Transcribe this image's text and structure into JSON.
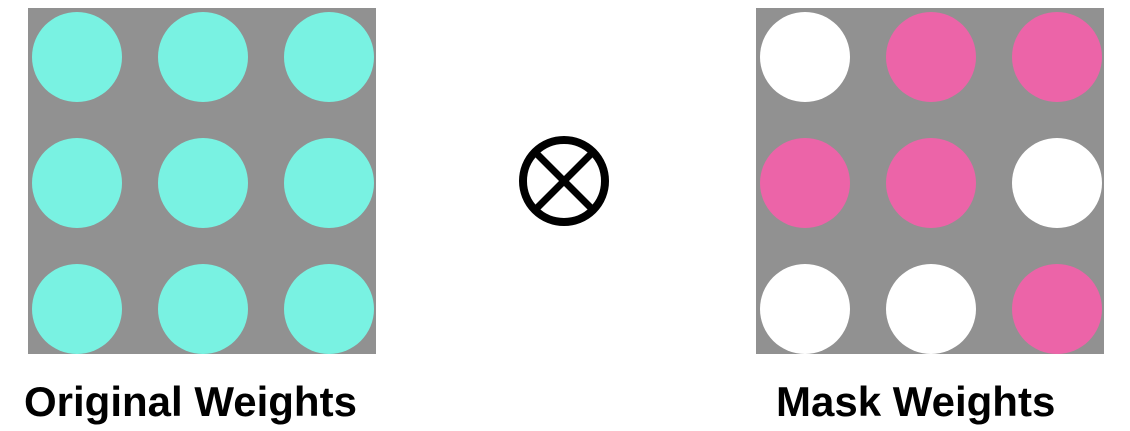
{
  "left": {
    "caption": "Original Weights",
    "grid": [
      [
        "on",
        "on",
        "on"
      ],
      [
        "on",
        "on",
        "on"
      ],
      [
        "on",
        "on",
        "on"
      ]
    ]
  },
  "operator": {
    "icon": "circled-times-icon"
  },
  "right": {
    "caption": "Mask Weights",
    "grid": [
      [
        "off",
        "on",
        "on"
      ],
      [
        "on",
        "on",
        "off"
      ],
      [
        "off",
        "off",
        "on"
      ]
    ]
  },
  "colors": {
    "panel_background": "#919191",
    "original_weight": "#79F2E2",
    "mask_on": "#EC64A8",
    "mask_off": "#FFFFFF",
    "operator": "#000000",
    "caption": "#000000"
  }
}
